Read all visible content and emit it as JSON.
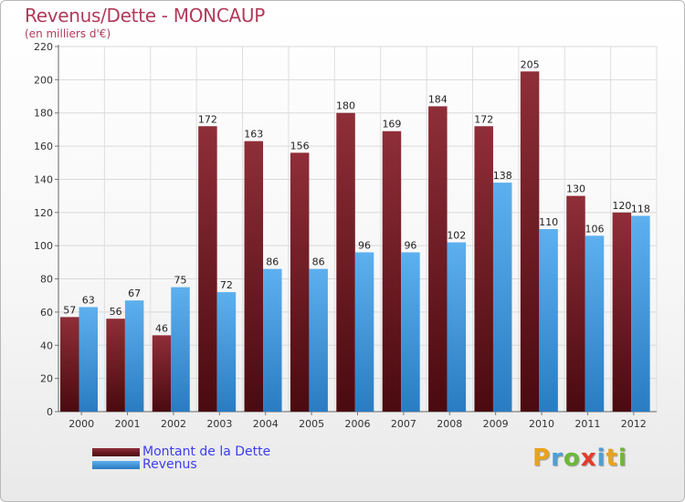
{
  "chart_data": {
    "type": "bar",
    "title": "Revenus/Dette - MONCAUP",
    "subtitle": "(en milliers d'€)",
    "categories": [
      "2000",
      "2001",
      "2002",
      "2003",
      "2004",
      "2005",
      "2006",
      "2007",
      "2008",
      "2009",
      "2010",
      "2011",
      "2012"
    ],
    "series": [
      {
        "name": "Montant de la Dette",
        "color": "#7b1e28",
        "values": [
          57,
          56,
          46,
          172,
          163,
          156,
          180,
          169,
          184,
          172,
          205,
          130,
          120
        ]
      },
      {
        "name": "Revenus",
        "color": "#3f95dd",
        "values": [
          63,
          67,
          75,
          72,
          86,
          86,
          96,
          96,
          102,
          138,
          110,
          106,
          118
        ]
      }
    ],
    "ylim": [
      0,
      220
    ],
    "yticks": [
      0,
      20,
      40,
      60,
      80,
      100,
      120,
      140,
      160,
      180,
      200,
      220
    ],
    "grid": true,
    "data_labels": true,
    "legend_position": "bottom-left"
  },
  "logo": {
    "letters": [
      {
        "ch": "P",
        "color": "#e9a31b"
      },
      {
        "ch": "r",
        "color": "#4a9fd8"
      },
      {
        "ch": "o",
        "color": "#6cb83a"
      },
      {
        "ch": "x",
        "color": "#e43b2c"
      },
      {
        "ch": "i",
        "color": "#4a9fd8"
      },
      {
        "ch": "t",
        "color": "#e9a31b"
      },
      {
        "ch": "i",
        "color": "#6cb83a"
      }
    ]
  }
}
